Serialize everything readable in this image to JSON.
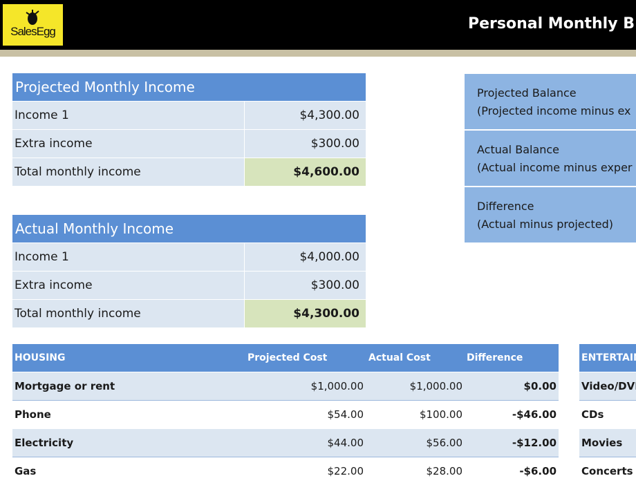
{
  "header": {
    "logo_text": "SalesEgg",
    "title": "Personal Monthly B"
  },
  "projected_income": {
    "title": "Projected Monthly Income",
    "rows": [
      {
        "label": "Income 1",
        "value": "$4,300.00"
      },
      {
        "label": "Extra income",
        "value": "$300.00"
      },
      {
        "label": "Total monthly income",
        "value": "$4,600.00"
      }
    ]
  },
  "actual_income": {
    "title": "Actual Monthly Income",
    "rows": [
      {
        "label": "Income 1",
        "value": "$4,000.00"
      },
      {
        "label": "Extra income",
        "value": "$300.00"
      },
      {
        "label": "Total monthly income",
        "value": "$4,300.00"
      }
    ]
  },
  "balances": [
    {
      "title": "Projected Balance",
      "subtitle": "(Projected income minus ex"
    },
    {
      "title": "Actual Balance",
      "subtitle": "(Actual income minus exper"
    },
    {
      "title": "Difference",
      "subtitle": "(Actual minus projected)"
    }
  ],
  "housing": {
    "headers": {
      "name": "HOUSING",
      "projected": "Projected Cost",
      "actual": "Actual Cost",
      "difference": "Difference"
    },
    "rows": [
      {
        "name": "Mortgage or rent",
        "projected": "$1,000.00",
        "actual": "$1,000.00",
        "difference": "$0.00"
      },
      {
        "name": "Phone",
        "projected": "$54.00",
        "actual": "$100.00",
        "difference": "-$46.00"
      },
      {
        "name": "Electricity",
        "projected": "$44.00",
        "actual": "$56.00",
        "difference": "-$12.00"
      },
      {
        "name": "Gas",
        "projected": "$22.00",
        "actual": "$28.00",
        "difference": "-$6.00"
      }
    ]
  },
  "entertainment": {
    "header": "ENTERTAIN",
    "rows": [
      "Video/DVD",
      "CDs",
      "Movies",
      "Concerts"
    ]
  },
  "colors": {
    "header_bg": "#000000",
    "logo_bg": "#f5e629",
    "table_header": "#5b8fd4",
    "row_fill": "#dce6f1",
    "total_fill": "#d7e4bc",
    "balance_fill": "#8db4e2"
  }
}
